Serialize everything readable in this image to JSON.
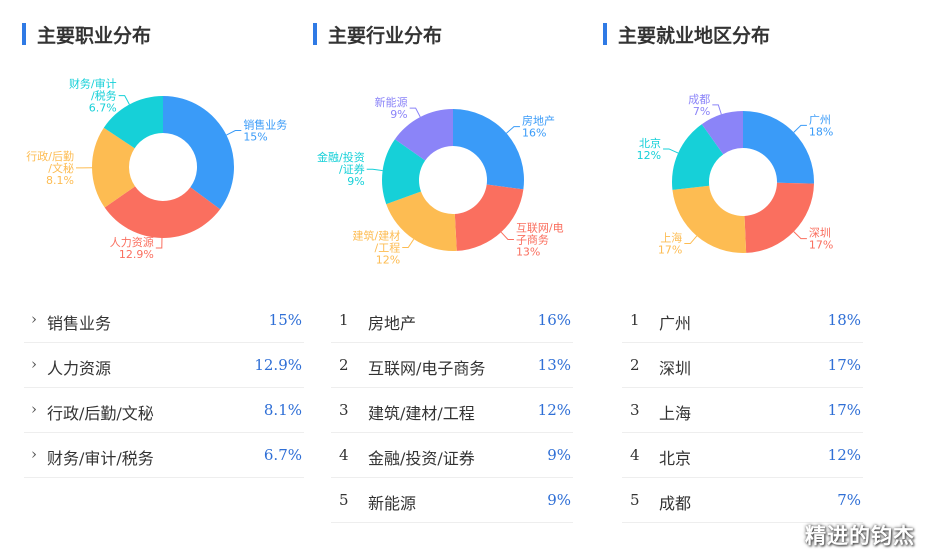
{
  "panels": [
    {
      "title": "主要职业分布",
      "items": [
        {
          "name": "销售业务",
          "pct": "15%"
        },
        {
          "name": "人力资源",
          "pct": "12.9%"
        },
        {
          "name": "行政/后勤/文秘",
          "pct": "8.1%"
        },
        {
          "name": "财务/审计/税务",
          "pct": "6.7%"
        }
      ]
    },
    {
      "title": "主要行业分布",
      "items": [
        {
          "rank": "1",
          "name": "房地产",
          "pct": "16%"
        },
        {
          "rank": "2",
          "name": "互联网/电子商务",
          "pct": "13%"
        },
        {
          "rank": "3",
          "name": "建筑/建材/工程",
          "pct": "12%"
        },
        {
          "rank": "4",
          "name": "金融/投资/证券",
          "pct": "9%"
        },
        {
          "rank": "5",
          "name": "新能源",
          "pct": "9%"
        }
      ]
    },
    {
      "title": "主要就业地区分布",
      "items": [
        {
          "rank": "1",
          "name": "广州",
          "pct": "18%"
        },
        {
          "rank": "2",
          "name": "深圳",
          "pct": "17%"
        },
        {
          "rank": "3",
          "name": "上海",
          "pct": "17%"
        },
        {
          "rank": "4",
          "name": "北京",
          "pct": "12%"
        },
        {
          "rank": "5",
          "name": "成都",
          "pct": "7%"
        }
      ]
    }
  ],
  "chart_data": [
    {
      "type": "pie",
      "title": "主要职业分布",
      "categories": [
        "销售业务",
        "人力资源",
        "行政/后勤/文秘",
        "财务/审计/税务"
      ],
      "values": [
        15,
        12.9,
        8.1,
        6.7
      ],
      "labels": [
        [
          "销售业务",
          "15%"
        ],
        [
          "人力资源",
          "12.9%"
        ],
        [
          "行政/后勤",
          "/文秘",
          "8.1%"
        ],
        [
          "财务/审计",
          "/税务",
          "6.7%"
        ]
      ],
      "colors": [
        "#3a9bf8",
        "#fa6f5f",
        "#fdbc52",
        "#16d0d8"
      ]
    },
    {
      "type": "pie",
      "title": "主要行业分布",
      "categories": [
        "房地产",
        "互联网/电子商务",
        "建筑/建材/工程",
        "金融/投资/证券",
        "新能源"
      ],
      "values": [
        16,
        13,
        12,
        9,
        9
      ],
      "labels": [
        [
          "房地产",
          "16%"
        ],
        [
          "互联网/电",
          "子商务",
          "13%"
        ],
        [
          "建筑/建材",
          "/工程",
          "12%"
        ],
        [
          "金融/投资",
          "/证券",
          "9%"
        ],
        [
          "新能源",
          "9%"
        ]
      ],
      "colors": [
        "#3a9bf8",
        "#fa6f5f",
        "#fdbc52",
        "#16d0d8",
        "#8b84f8"
      ]
    },
    {
      "type": "pie",
      "title": "主要就业地区分布",
      "categories": [
        "广州",
        "深圳",
        "上海",
        "北京",
        "成都"
      ],
      "values": [
        18,
        17,
        17,
        12,
        7
      ],
      "labels": [
        [
          "广州",
          "18%"
        ],
        [
          "深圳",
          "17%"
        ],
        [
          "上海",
          "17%"
        ],
        [
          "北京",
          "12%"
        ],
        [
          "成都",
          "7%"
        ]
      ],
      "colors": [
        "#3a9bf8",
        "#fa6f5f",
        "#fdbc52",
        "#16d0d8",
        "#8b84f8"
      ]
    }
  ],
  "watermark": "精进的钧杰"
}
